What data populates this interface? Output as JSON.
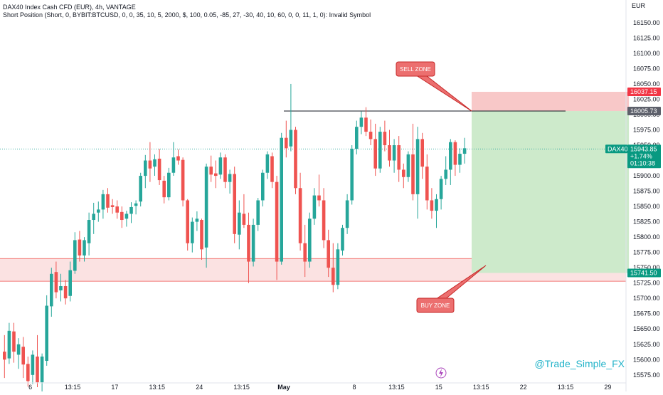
{
  "header": {
    "title": "DAX40 Index Cash CFD (EUR), 4h, VANTAGE",
    "subtitle": "Short Position (Short, 0, BYBIT:BTCUSD, 0, 0, 35, 10, 5, 2000, $, 100, 0.05, -85, 27, -30, 40, 10, 60, 0, 0, 11, 1, 0): Invalid Symbol"
  },
  "watermark": "@Trade_Simple_FX",
  "chart_data": {
    "type": "candlestick",
    "currency": "EUR",
    "ylim": [
      15562,
      16187
    ],
    "y_ticks": [
      16150,
      16125,
      16100,
      16075,
      16050,
      16025,
      16000,
      15975,
      15950,
      15925,
      15900,
      15875,
      15850,
      15825,
      15800,
      15775,
      15750,
      15725,
      15700,
      15675,
      15650,
      15625,
      15600,
      15575
    ],
    "x_ticks": [
      {
        "label": "6",
        "bar": 6
      },
      {
        "label": "13:15",
        "bar": 15
      },
      {
        "label": "17",
        "bar": 24
      },
      {
        "label": "13:15",
        "bar": 33
      },
      {
        "label": "24",
        "bar": 42
      },
      {
        "label": "13:15",
        "bar": 51
      },
      {
        "label": "May",
        "bar": 60
      },
      {
        "label": "8",
        "bar": 75
      },
      {
        "label": "13:15",
        "bar": 84
      },
      {
        "label": "15",
        "bar": 93
      },
      {
        "label": "13:15",
        "bar": 102
      },
      {
        "label": "22",
        "bar": 111
      },
      {
        "label": "13:15",
        "bar": 120
      },
      {
        "label": "29",
        "bar": 129
      }
    ],
    "symbol": "DAX40",
    "last_price": "15943.85",
    "change_pct": "+1.74%",
    "countdown": "01:10:38",
    "price_labels": {
      "stop": "16037.15",
      "entry": "16005.73",
      "target": "15741.50"
    },
    "levels": {
      "stop": 16037.15,
      "entry": 16005.73,
      "target": 15741.5,
      "resistance_line": 16005.73,
      "current": 15943.85
    },
    "buy_zone_band": [
      15728,
      15765
    ],
    "position_x": {
      "start_bar": 100,
      "end_bar": 133.5
    },
    "resistance_x": {
      "start_bar": 60,
      "end_bar": 120
    },
    "callouts": {
      "sell": "SELL ZONE",
      "buy": "BUY ZONE"
    },
    "colors": {
      "up": "#26a69a",
      "down": "#ef5350",
      "stop_zone": "#f8c8c8",
      "target_zone": "#cdeacb",
      "buy_band": "#fbe2e2",
      "current_line": "#26a69a",
      "callout_fill": "#ec6f6f",
      "callout_stroke": "#c62828",
      "watermark": "#22b3c9"
    },
    "candles": [
      [
        15613,
        15640,
        15570,
        15600
      ],
      [
        15602,
        15660,
        15593,
        15647
      ],
      [
        15646,
        15660,
        15595,
        15613
      ],
      [
        15608,
        15635,
        15585,
        15625
      ],
      [
        15621,
        15637,
        15570,
        15592
      ],
      [
        15593,
        15605,
        15556,
        15565
      ],
      [
        15575,
        15615,
        15560,
        15608
      ],
      [
        15605,
        15640,
        15555,
        15563
      ],
      [
        15563,
        15610,
        15545,
        15605
      ],
      [
        15598,
        15705,
        15590,
        15688
      ],
      [
        15687,
        15750,
        15670,
        15740
      ],
      [
        15743,
        15760,
        15700,
        15710
      ],
      [
        15713,
        15740,
        15695,
        15720
      ],
      [
        15720,
        15730,
        15690,
        15700
      ],
      [
        15704,
        15760,
        15695,
        15746
      ],
      [
        15745,
        15808,
        15740,
        15795
      ],
      [
        15796,
        15810,
        15760,
        15770
      ],
      [
        15770,
        15800,
        15760,
        15795
      ],
      [
        15790,
        15840,
        15770,
        15828
      ],
      [
        15828,
        15856,
        15805,
        15838
      ],
      [
        15840,
        15858,
        15825,
        15845
      ],
      [
        15845,
        15877,
        15830,
        15870
      ],
      [
        15870,
        15880,
        15840,
        15848
      ],
      [
        15852,
        15862,
        15838,
        15849
      ],
      [
        15850,
        15860,
        15830,
        15840
      ],
      [
        15841,
        15850,
        15815,
        15828
      ],
      [
        15830,
        15843,
        15817,
        15838
      ],
      [
        15838,
        15857,
        15823,
        15849
      ],
      [
        15851,
        15860,
        15837,
        15855
      ],
      [
        15858,
        15905,
        15850,
        15900
      ],
      [
        15900,
        15934,
        15880,
        15925
      ],
      [
        15925,
        15955,
        15890,
        15912
      ],
      [
        15915,
        15935,
        15900,
        15927
      ],
      [
        15928,
        15944,
        15885,
        15893
      ],
      [
        15892,
        15900,
        15855,
        15865
      ],
      [
        15865,
        15913,
        15860,
        15905
      ],
      [
        15905,
        15955,
        15900,
        15930
      ],
      [
        15932,
        15943,
        15918,
        15925
      ],
      [
        15926,
        15930,
        15850,
        15860
      ],
      [
        15860,
        15862,
        15778,
        15790
      ],
      [
        15790,
        15832,
        15775,
        15825
      ],
      [
        15825,
        15842,
        15810,
        15830
      ],
      [
        15828,
        15830,
        15763,
        15780
      ],
      [
        15783,
        15920,
        15750,
        15915
      ],
      [
        15915,
        15933,
        15890,
        15902
      ],
      [
        15904,
        15925,
        15880,
        15900
      ],
      [
        15902,
        15938,
        15895,
        15930
      ],
      [
        15930,
        15935,
        15880,
        15890
      ],
      [
        15890,
        15910,
        15871,
        15903
      ],
      [
        15903,
        15915,
        15790,
        15805
      ],
      [
        15804,
        15860,
        15780,
        15840
      ],
      [
        15838,
        15870,
        15815,
        15820
      ],
      [
        15820,
        15840,
        15725,
        15760
      ],
      [
        15760,
        15830,
        15752,
        15820
      ],
      [
        15820,
        15864,
        15810,
        15860
      ],
      [
        15860,
        15910,
        15850,
        15905
      ],
      [
        15905,
        15940,
        15895,
        15935
      ],
      [
        15932,
        15938,
        15880,
        15890
      ],
      [
        15890,
        15900,
        15730,
        15760
      ],
      [
        15760,
        15970,
        15755,
        15962
      ],
      [
        15962,
        15990,
        15930,
        15945
      ],
      [
        15948,
        16050,
        15940,
        15975
      ],
      [
        15975,
        15980,
        15870,
        15880
      ],
      [
        15880,
        15905,
        15778,
        15790
      ],
      [
        15790,
        15820,
        15735,
        15760
      ],
      [
        15760,
        15840,
        15750,
        15830
      ],
      [
        15830,
        15880,
        15820,
        15868
      ],
      [
        15868,
        15902,
        15850,
        15860
      ],
      [
        15860,
        15880,
        15782,
        15795
      ],
      [
        15795,
        15812,
        15735,
        15750
      ],
      [
        15750,
        15790,
        15710,
        15722
      ],
      [
        15722,
        15790,
        15715,
        15780
      ],
      [
        15778,
        15820,
        15770,
        15815
      ],
      [
        15815,
        15870,
        15805,
        15860
      ],
      [
        15860,
        15950,
        15853,
        15944
      ],
      [
        15944,
        15990,
        15935,
        15980
      ],
      [
        15980,
        16005,
        15968,
        15995
      ],
      [
        15995,
        16012,
        15965,
        15972
      ],
      [
        15972,
        15992,
        15950,
        15960
      ],
      [
        15960,
        15985,
        15900,
        15912
      ],
      [
        15912,
        15980,
        15905,
        15972
      ],
      [
        15972,
        15990,
        15940,
        15950
      ],
      [
        15950,
        15975,
        15915,
        15925
      ],
      [
        15925,
        15960,
        15905,
        15950
      ],
      [
        15950,
        15965,
        15890,
        15910
      ],
      [
        15910,
        15920,
        15880,
        15898
      ],
      [
        15898,
        15940,
        15890,
        15935
      ],
      [
        15935,
        15985,
        15860,
        15870
      ],
      [
        15870,
        15980,
        15830,
        15960
      ],
      [
        15960,
        15970,
        15895,
        15915
      ],
      [
        15915,
        15935,
        15845,
        15860
      ],
      [
        15860,
        15880,
        15830,
        15843
      ],
      [
        15843,
        15870,
        15815,
        15862
      ],
      [
        15862,
        15900,
        15845,
        15895
      ],
      [
        15895,
        15932,
        15885,
        15910
      ],
      [
        15910,
        15960,
        15885,
        15955
      ],
      [
        15955,
        15958,
        15900,
        15918
      ],
      [
        15918,
        15945,
        15905,
        15936
      ],
      [
        15936,
        15962,
        15920,
        15945
      ]
    ]
  }
}
